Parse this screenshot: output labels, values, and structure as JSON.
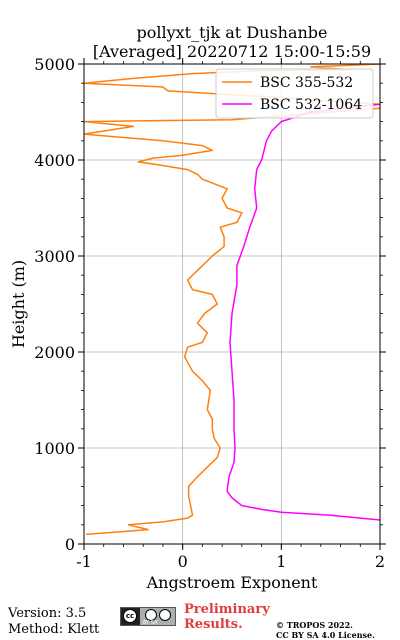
{
  "chart_data": {
    "type": "line",
    "title_line1": "pollyxt_tjk at Dushanbe",
    "title_line2": "[Averaged] 20220712 15:00-15:59",
    "xlabel": "Angstroem Exponent",
    "ylabel": "Height (m)",
    "xlim": [
      -1,
      2
    ],
    "ylim": [
      0,
      5000
    ],
    "x_ticks": [
      "-1",
      "0",
      "1",
      "2"
    ],
    "y_ticks": [
      "0",
      "1000",
      "2000",
      "3000",
      "4000",
      "5000"
    ],
    "x_tick_values": [
      -1,
      0,
      1,
      2
    ],
    "y_tick_values": [
      0,
      1000,
      2000,
      3000,
      4000,
      5000
    ],
    "grid": true,
    "legend_position": "top-right",
    "series": [
      {
        "name": "BSC 355-532",
        "color": "#ff7f0e",
        "points": [
          [
            -0.98,
            100
          ],
          [
            -0.6,
            130
          ],
          [
            -0.35,
            150
          ],
          [
            -0.55,
            200
          ],
          [
            -0.2,
            230
          ],
          [
            0.05,
            270
          ],
          [
            0.1,
            300
          ],
          [
            0.08,
            400
          ],
          [
            0.06,
            500
          ],
          [
            0.06,
            600
          ],
          [
            0.15,
            700
          ],
          [
            0.25,
            800
          ],
          [
            0.35,
            900
          ],
          [
            0.38,
            1000
          ],
          [
            0.32,
            1100
          ],
          [
            0.3,
            1200
          ],
          [
            0.3,
            1300
          ],
          [
            0.25,
            1400
          ],
          [
            0.28,
            1600
          ],
          [
            0.2,
            1700
          ],
          [
            0.1,
            1800
          ],
          [
            0.02,
            1950
          ],
          [
            0.05,
            2050
          ],
          [
            0.2,
            2100
          ],
          [
            0.25,
            2200
          ],
          [
            0.15,
            2300
          ],
          [
            0.22,
            2400
          ],
          [
            0.35,
            2500
          ],
          [
            0.3,
            2600
          ],
          [
            0.1,
            2650
          ],
          [
            0.05,
            2750
          ],
          [
            0.15,
            2850
          ],
          [
            0.3,
            3000
          ],
          [
            0.42,
            3100
          ],
          [
            0.42,
            3200
          ],
          [
            0.38,
            3300
          ],
          [
            0.55,
            3350
          ],
          [
            0.6,
            3450
          ],
          [
            0.45,
            3500
          ],
          [
            0.4,
            3600
          ],
          [
            0.45,
            3700
          ],
          [
            0.2,
            3800
          ],
          [
            0.15,
            3850
          ],
          [
            0.05,
            3900
          ],
          [
            -0.25,
            3950
          ],
          [
            -0.45,
            3980
          ],
          [
            -0.3,
            4020
          ],
          [
            0.0,
            4050
          ],
          [
            0.3,
            4100
          ],
          [
            0.2,
            4150
          ],
          [
            -0.2,
            4200
          ],
          [
            -1.0,
            4270
          ],
          [
            -0.5,
            4350
          ],
          [
            -1.0,
            4400
          ],
          [
            0.5,
            4420
          ],
          [
            1.0,
            4460
          ],
          [
            2.0,
            4540
          ],
          [
            2.0,
            4580
          ],
          [
            1.4,
            4620
          ],
          [
            1.0,
            4650
          ],
          [
            0.5,
            4680
          ],
          [
            -0.15,
            4720
          ],
          [
            -0.2,
            4760
          ],
          [
            -1.0,
            4800
          ],
          [
            -0.5,
            4850
          ],
          [
            0.1,
            4900
          ],
          [
            0.8,
            4930
          ],
          [
            1.7,
            4940
          ],
          [
            1.3,
            4970
          ],
          [
            2.0,
            5000
          ]
        ]
      },
      {
        "name": "BSC 532-1064",
        "color": "#ff00ff",
        "points": [
          [
            2.0,
            250
          ],
          [
            1.8,
            270
          ],
          [
            1.5,
            300
          ],
          [
            1.0,
            330
          ],
          [
            0.8,
            360
          ],
          [
            0.6,
            400
          ],
          [
            0.5,
            480
          ],
          [
            0.45,
            550
          ],
          [
            0.47,
            700
          ],
          [
            0.52,
            850
          ],
          [
            0.53,
            1000
          ],
          [
            0.52,
            1200
          ],
          [
            0.52,
            1500
          ],
          [
            0.5,
            1800
          ],
          [
            0.48,
            2100
          ],
          [
            0.5,
            2400
          ],
          [
            0.55,
            2700
          ],
          [
            0.55,
            2900
          ],
          [
            0.62,
            3100
          ],
          [
            0.68,
            3300
          ],
          [
            0.75,
            3500
          ],
          [
            0.73,
            3700
          ],
          [
            0.75,
            3900
          ],
          [
            0.8,
            4000
          ],
          [
            0.85,
            4200
          ],
          [
            0.9,
            4300
          ],
          [
            1.0,
            4400
          ],
          [
            1.3,
            4500
          ],
          [
            2.0,
            4580
          ]
        ]
      }
    ]
  },
  "footer": {
    "version": "Version: 3.5",
    "method": "Method: Klett",
    "cc_label": "BY  SA",
    "cc_circle": "cc",
    "preliminary": "Preliminary Results.",
    "copyright_line1": "© TROPOS 2022.",
    "copyright_line2": "CC BY SA 4.0 License."
  }
}
